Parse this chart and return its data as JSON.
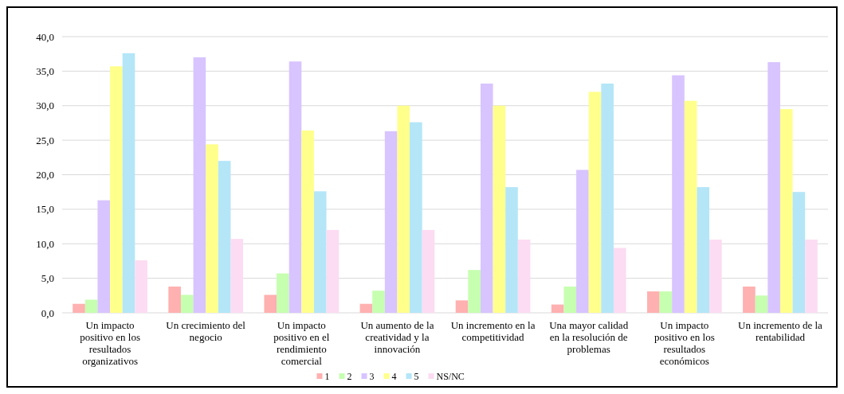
{
  "chart_data": {
    "type": "bar",
    "categories": [
      "Un impacto positivo en los resultados organizativos",
      "Un crecimiento del negocio",
      "Un impacto positivo en el rendimiento comercial",
      "Un aumento de la creatividad y la innovación",
      "Un incremento en la competitividad",
      "Una mayor calidad en la resolución de problemas",
      "Un impacto positivo en los resultados económicos",
      "Un incremento de la rentabilidad"
    ],
    "series": [
      {
        "name": "1",
        "color": "#ffb0b0",
        "values": [
          1.3,
          3.8,
          2.6,
          1.3,
          1.8,
          1.2,
          3.1,
          3.8
        ]
      },
      {
        "name": "2",
        "color": "#c6ffb0",
        "values": [
          1.9,
          2.6,
          5.7,
          3.2,
          6.2,
          3.8,
          3.1,
          2.5
        ]
      },
      {
        "name": "3",
        "color": "#d8c4ff",
        "values": [
          16.3,
          37.0,
          36.4,
          26.3,
          33.2,
          20.7,
          34.4,
          36.3
        ]
      },
      {
        "name": "4",
        "color": "#ffff8c",
        "values": [
          35.7,
          24.4,
          26.4,
          30.0,
          30.0,
          32.0,
          30.7,
          29.5
        ]
      },
      {
        "name": "5",
        "color": "#b4e6f8",
        "values": [
          37.6,
          22.0,
          17.6,
          27.6,
          18.2,
          33.2,
          18.2,
          17.5
        ]
      },
      {
        "name": "NS/NC",
        "color": "#fcdcf2",
        "values": [
          7.6,
          10.7,
          12.0,
          12.0,
          10.6,
          9.4,
          10.6,
          10.6
        ]
      }
    ],
    "ylim": [
      0,
      40
    ],
    "yticks": [
      {
        "value": 0,
        "label": "0,0"
      },
      {
        "value": 5,
        "label": "5,0"
      },
      {
        "value": 10,
        "label": "10,0"
      },
      {
        "value": 15,
        "label": "15,0"
      },
      {
        "value": 20,
        "label": "20,0"
      },
      {
        "value": 25,
        "label": "25,0"
      },
      {
        "value": 30,
        "label": "30,0"
      },
      {
        "value": 35,
        "label": "35,0"
      },
      {
        "value": 40,
        "label": "40,0"
      }
    ],
    "grid": "y",
    "legend": "bottom"
  }
}
